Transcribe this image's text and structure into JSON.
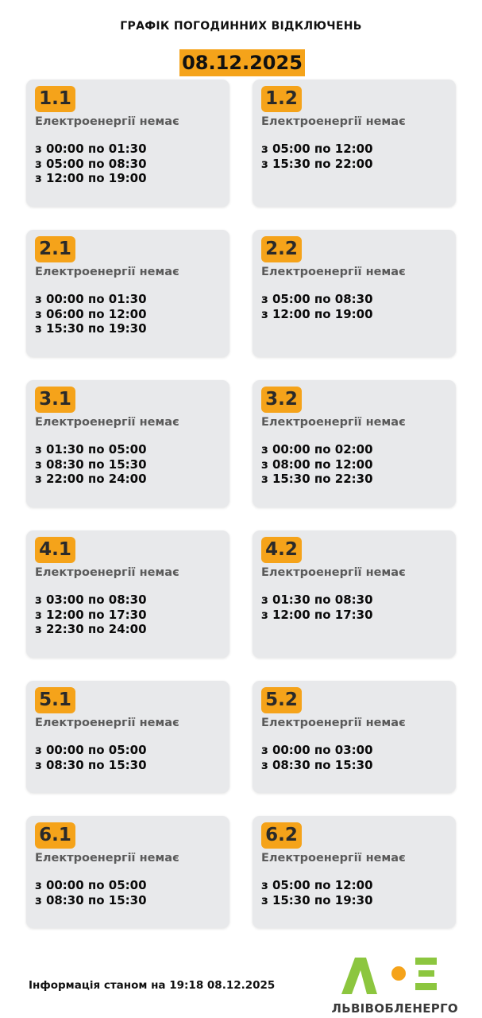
{
  "header": {
    "title": "ГРАФІК ПОГОДИННИХ ВІДКЛЮЧЕНЬ",
    "date": "08.12.2025"
  },
  "groups": [
    {
      "id": "1.1",
      "status": "Електроенергії немає",
      "times": [
        "з 00:00 по 01:30",
        "з 05:00 по 08:30",
        "з 12:00 по 19:00"
      ]
    },
    {
      "id": "1.2",
      "status": "Електроенергії немає",
      "times": [
        "з 05:00 по 12:00",
        "з 15:30 по 22:00"
      ]
    },
    {
      "id": "2.1",
      "status": "Електроенергії немає",
      "times": [
        "з 00:00 по 01:30",
        "з 06:00 по 12:00",
        "з 15:30 по 19:30"
      ]
    },
    {
      "id": "2.2",
      "status": "Електроенергії немає",
      "times": [
        "з 05:00 по 08:30",
        "з 12:00 по 19:00"
      ]
    },
    {
      "id": "3.1",
      "status": "Електроенергії немає",
      "times": [
        "з 01:30 по 05:00",
        "з 08:30 по 15:30",
        "з 22:00 по 24:00"
      ]
    },
    {
      "id": "3.2",
      "status": "Електроенергії немає",
      "times": [
        "з 00:00 по 02:00",
        "з 08:00 по 12:00",
        "з 15:30 по 22:30"
      ]
    },
    {
      "id": "4.1",
      "status": "Електроенергії немає",
      "times": [
        "з 03:00 по 08:30",
        "з 12:00 по 17:30",
        "з 22:30 по 24:00"
      ]
    },
    {
      "id": "4.2",
      "status": "Електроенергії немає",
      "times": [
        "з 01:30 по 08:30",
        "з 12:00 по 17:30"
      ]
    },
    {
      "id": "5.1",
      "status": "Електроенергії немає",
      "times": [
        "з 00:00 по 05:00",
        "з 08:30 по 15:30"
      ]
    },
    {
      "id": "5.2",
      "status": "Електроенергії немає",
      "times": [
        "з 00:00 по 03:00",
        "з 08:30 по 15:30"
      ]
    },
    {
      "id": "6.1",
      "status": "Електроенергії немає",
      "times": [
        "з 00:00 по 05:00",
        "з 08:30 по 15:30"
      ]
    },
    {
      "id": "6.2",
      "status": "Електроенергії немає",
      "times": [
        "з 05:00 по 12:00",
        "з 15:30 по 19:30"
      ]
    }
  ],
  "footer": {
    "info": "Інформація станом на 19:18 08.12.2025",
    "logo_text": "ЛЬВІВОБЛЕНЕРГО"
  },
  "colors": {
    "accent": "#f5a31a",
    "card": "#e8e9eb",
    "logo_green": "#8cc63f",
    "logo_orange": "#f5a31a"
  }
}
